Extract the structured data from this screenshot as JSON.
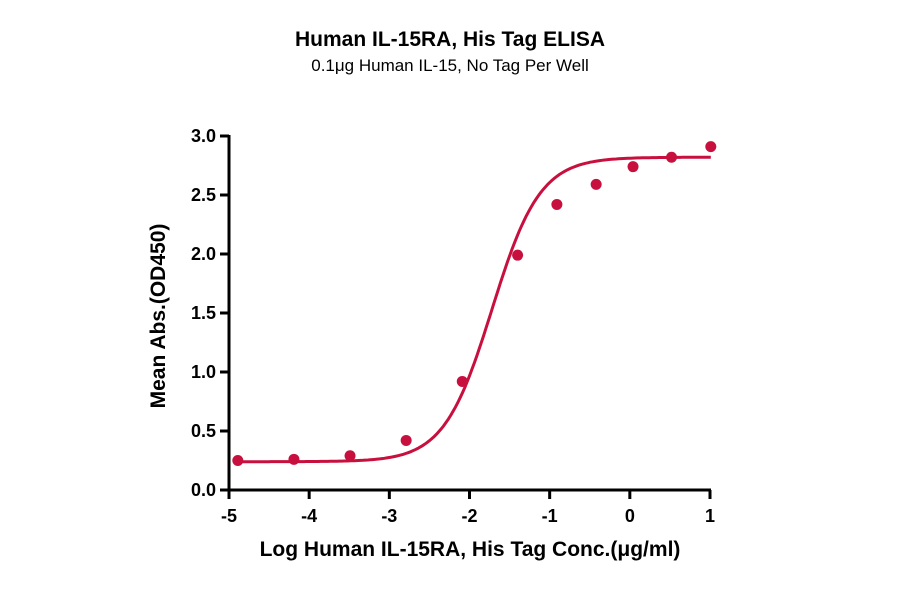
{
  "chart_data": {
    "type": "scatter",
    "title": "Human IL-15RA, His Tag ELISA",
    "subtitle": "0.1μg Human IL-15, No Tag Per Well",
    "xlabel": "Log Human IL-15RA, His Tag Conc.(μg/ml)",
    "ylabel": "Mean Abs.(OD450)",
    "xlim": [
      -5,
      1
    ],
    "ylim": [
      0,
      3.0
    ],
    "xticks": [
      "-5",
      "-4",
      "-3",
      "-2",
      "-1",
      "0",
      "1"
    ],
    "yticks": [
      "0.0",
      "0.5",
      "1.0",
      "1.5",
      "2.0",
      "2.5",
      "3.0"
    ],
    "grid": false,
    "legend": null,
    "series": [
      {
        "name": "Mean Abs.",
        "color": "#c8103e",
        "fit": "4-parameter logistic sigmoid",
        "x": [
          -4.89,
          -4.19,
          -3.49,
          -2.79,
          -2.09,
          -1.4,
          -0.91,
          -0.42,
          0.04,
          0.52,
          1.01
        ],
        "y": [
          0.25,
          0.26,
          0.29,
          0.42,
          0.92,
          1.99,
          2.42,
          2.59,
          2.74,
          2.82,
          2.91
        ]
      }
    ],
    "fit_params": {
      "bottom": 0.24,
      "top": 2.82,
      "logEC50": -1.72,
      "hill": 1.45
    }
  }
}
